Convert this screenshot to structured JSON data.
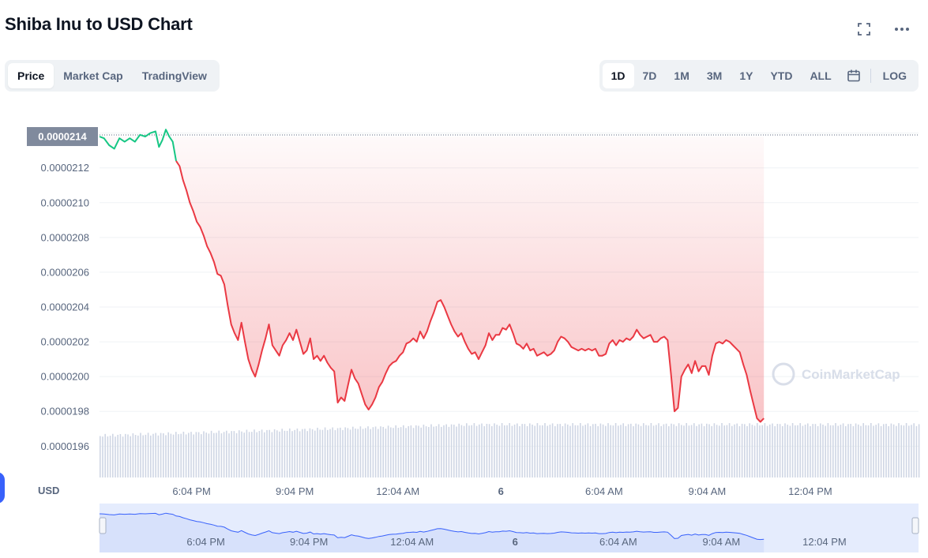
{
  "header": {
    "title": "Shiba Inu to USD Chart"
  },
  "tabs": [
    {
      "label": "Price",
      "active": true
    },
    {
      "label": "Market Cap",
      "active": false
    },
    {
      "label": "TradingView",
      "active": false
    }
  ],
  "ranges": [
    {
      "label": "1D",
      "active": true
    },
    {
      "label": "7D",
      "active": false
    },
    {
      "label": "1M",
      "active": false
    },
    {
      "label": "3M",
      "active": false
    },
    {
      "label": "1Y",
      "active": false
    },
    {
      "label": "YTD",
      "active": false
    },
    {
      "label": "ALL",
      "active": false
    }
  ],
  "log_label": "LOG",
  "icons": {
    "fullscreen": "expand-icon",
    "more": "more-dots-icon",
    "calendar": "calendar-icon"
  },
  "colors": {
    "line_down": "#ea3943",
    "line_up": "#16c784",
    "fill_top": "#fde8ea",
    "volume": "#cfd6e4",
    "navigator_bg": "#e5ecfd",
    "navigator_line": "#3861fb",
    "accent": "#3861fb"
  },
  "chart_data": {
    "type": "area",
    "currency_label": "USD",
    "watermark": "CoinMarketCap",
    "current_price_label": "0.0000214",
    "y_ticks": [
      "0.0000196",
      "0.0000198",
      "0.0000200",
      "0.0000202",
      "0.0000204",
      "0.0000206",
      "0.0000208",
      "0.0000210",
      "0.0000212",
      "0.0000214"
    ],
    "x_ticks": [
      "6:04 PM",
      "9:04 PM",
      "12:04 AM",
      "6",
      "6:04 AM",
      "9:04 AM",
      "12:04 PM"
    ],
    "x_tick_hours": [
      3,
      6,
      9,
      12,
      15,
      18,
      21
    ],
    "x_range_hours": [
      0.32,
      24.15
    ],
    "y_range": [
      1.942e-05,
      2.143e-05
    ],
    "ylim": [
      1.961e-05,
      2.14e-05
    ],
    "price_series": [
      [
        0.32,
        2.138e-05
      ],
      [
        0.45,
        2.137e-05
      ],
      [
        0.6,
        2.133e-05
      ],
      [
        0.75,
        2.131e-05
      ],
      [
        0.9,
        2.137e-05
      ],
      [
        1.05,
        2.135e-05
      ],
      [
        1.2,
        2.137e-05
      ],
      [
        1.35,
        2.135e-05
      ],
      [
        1.5,
        2.139e-05
      ],
      [
        1.65,
        2.138e-05
      ],
      [
        1.8,
        2.14e-05
      ],
      [
        1.95,
        2.141e-05
      ],
      [
        2.05,
        2.132e-05
      ],
      [
        2.15,
        2.136e-05
      ],
      [
        2.25,
        2.142e-05
      ],
      [
        2.35,
        2.138e-05
      ],
      [
        2.45,
        2.135e-05
      ],
      [
        2.55,
        2.124e-05
      ],
      [
        2.65,
        2.121e-05
      ],
      [
        2.75,
        2.113e-05
      ],
      [
        2.85,
        2.107e-05
      ],
      [
        2.95,
        2.1e-05
      ],
      [
        3.05,
        2.095e-05
      ],
      [
        3.15,
        2.089e-05
      ],
      [
        3.25,
        2.086e-05
      ],
      [
        3.35,
        2.081e-05
      ],
      [
        3.45,
        2.075e-05
      ],
      [
        3.55,
        2.071e-05
      ],
      [
        3.65,
        2.066e-05
      ],
      [
        3.75,
        2.059e-05
      ],
      [
        3.85,
        2.058e-05
      ],
      [
        3.95,
        2.053e-05
      ],
      [
        4.05,
        2.041e-05
      ],
      [
        4.15,
        2.03e-05
      ],
      [
        4.25,
        2.025e-05
      ],
      [
        4.35,
        2.021e-05
      ],
      [
        4.45,
        2.031e-05
      ],
      [
        4.55,
        2.02e-05
      ],
      [
        4.65,
        2.01e-05
      ],
      [
        4.75,
        2.004e-05
      ],
      [
        4.85,
        2e-05
      ],
      [
        4.95,
        2.007e-05
      ],
      [
        5.05,
        2.015e-05
      ],
      [
        5.15,
        2.022e-05
      ],
      [
        5.25,
        2.03e-05
      ],
      [
        5.35,
        2.018e-05
      ],
      [
        5.45,
        2.015e-05
      ],
      [
        5.55,
        2.012e-05
      ],
      [
        5.65,
        2.018e-05
      ],
      [
        5.75,
        2.021e-05
      ],
      [
        5.85,
        2.025e-05
      ],
      [
        5.95,
        2.021e-05
      ],
      [
        6.05,
        2.027e-05
      ],
      [
        6.15,
        2.02e-05
      ],
      [
        6.25,
        2.013e-05
      ],
      [
        6.35,
        2.015e-05
      ],
      [
        6.45,
        2.022e-05
      ],
      [
        6.55,
        2.01e-05
      ],
      [
        6.65,
        2.012e-05
      ],
      [
        6.75,
        2.009e-05
      ],
      [
        6.85,
        2.012e-05
      ],
      [
        6.95,
        2.008e-05
      ],
      [
        7.05,
        2.005e-05
      ],
      [
        7.15,
        2.003e-05
      ],
      [
        7.25,
        1.985e-05
      ],
      [
        7.35,
        1.988e-05
      ],
      [
        7.45,
        1.986e-05
      ],
      [
        7.55,
        1.995e-05
      ],
      [
        7.65,
        2.004e-05
      ],
      [
        7.75,
        1.999e-05
      ],
      [
        7.85,
        1.996e-05
      ],
      [
        7.95,
        1.99e-05
      ],
      [
        8.05,
        1.984e-05
      ],
      [
        8.15,
        1.981e-05
      ],
      [
        8.25,
        1.984e-05
      ],
      [
        8.35,
        1.988e-05
      ],
      [
        8.45,
        1.994e-05
      ],
      [
        8.55,
        1.997e-05
      ],
      [
        8.65,
        2.002e-05
      ],
      [
        8.75,
        2.006e-05
      ],
      [
        8.85,
        2.008e-05
      ],
      [
        8.95,
        2.009e-05
      ],
      [
        9.05,
        2.012e-05
      ],
      [
        9.15,
        2.014e-05
      ],
      [
        9.25,
        2.019e-05
      ],
      [
        9.35,
        2.02e-05
      ],
      [
        9.45,
        2.022e-05
      ],
      [
        9.55,
        2.02e-05
      ],
      [
        9.65,
        2.026e-05
      ],
      [
        9.75,
        2.022e-05
      ],
      [
        9.85,
        2.026e-05
      ],
      [
        9.95,
        2.032e-05
      ],
      [
        10.05,
        2.037e-05
      ],
      [
        10.15,
        2.043e-05
      ],
      [
        10.25,
        2.044e-05
      ],
      [
        10.35,
        2.04e-05
      ],
      [
        10.45,
        2.035e-05
      ],
      [
        10.55,
        2.03e-05
      ],
      [
        10.65,
        2.026e-05
      ],
      [
        10.75,
        2.023e-05
      ],
      [
        10.85,
        2.025e-05
      ],
      [
        10.95,
        2.02e-05
      ],
      [
        11.05,
        2.016e-05
      ],
      [
        11.15,
        2.013e-05
      ],
      [
        11.25,
        2.014e-05
      ],
      [
        11.35,
        2.01e-05
      ],
      [
        11.45,
        2.014e-05
      ],
      [
        11.55,
        2.018e-05
      ],
      [
        11.65,
        2.025e-05
      ],
      [
        11.75,
        2.021e-05
      ],
      [
        11.85,
        2.024e-05
      ],
      [
        11.95,
        2.024e-05
      ],
      [
        12.05,
        2.028e-05
      ],
      [
        12.15,
        2.027e-05
      ],
      [
        12.25,
        2.03e-05
      ],
      [
        12.35,
        2.025e-05
      ],
      [
        12.45,
        2.019e-05
      ],
      [
        12.55,
        2.018e-05
      ],
      [
        12.65,
        2.016e-05
      ],
      [
        12.75,
        2.019e-05
      ],
      [
        12.85,
        2.015e-05
      ],
      [
        12.95,
        2.016e-05
      ],
      [
        13.05,
        2.012e-05
      ],
      [
        13.15,
        2.013e-05
      ],
      [
        13.25,
        2.014e-05
      ],
      [
        13.35,
        2.012e-05
      ],
      [
        13.45,
        2.013e-05
      ],
      [
        13.55,
        2.015e-05
      ],
      [
        13.65,
        2.02e-05
      ],
      [
        13.75,
        2.023e-05
      ],
      [
        13.85,
        2.022e-05
      ],
      [
        13.95,
        2.02e-05
      ],
      [
        14.05,
        2.017e-05
      ],
      [
        14.15,
        2.016e-05
      ],
      [
        14.25,
        2.015e-05
      ],
      [
        14.35,
        2.016e-05
      ],
      [
        14.45,
        2.015e-05
      ],
      [
        14.55,
        2.016e-05
      ],
      [
        14.65,
        2.015e-05
      ],
      [
        14.75,
        2.016e-05
      ],
      [
        14.85,
        2.012e-05
      ],
      [
        14.95,
        2.012e-05
      ],
      [
        15.05,
        2.013e-05
      ],
      [
        15.15,
        2.019e-05
      ],
      [
        15.25,
        2.021e-05
      ],
      [
        15.35,
        2.018e-05
      ],
      [
        15.45,
        2.021e-05
      ],
      [
        15.55,
        2.02e-05
      ],
      [
        15.65,
        2.022e-05
      ],
      [
        15.75,
        2.021e-05
      ],
      [
        15.85,
        2.023e-05
      ],
      [
        15.95,
        2.027e-05
      ],
      [
        16.05,
        2.024e-05
      ],
      [
        16.15,
        2.022e-05
      ],
      [
        16.25,
        2.023e-05
      ],
      [
        16.35,
        2.024e-05
      ],
      [
        16.45,
        2.02e-05
      ],
      [
        16.55,
        2.02e-05
      ],
      [
        16.65,
        2.022e-05
      ],
      [
        16.75,
        2.023e-05
      ],
      [
        16.85,
        2.021e-05
      ],
      [
        16.95,
        2.001e-05
      ],
      [
        17.05,
        1.98e-05
      ],
      [
        17.15,
        1.982e-05
      ],
      [
        17.25,
        2e-05
      ],
      [
        17.35,
        2.004e-05
      ],
      [
        17.45,
        2.007e-05
      ],
      [
        17.55,
        2.002e-05
      ],
      [
        17.65,
        2.009e-05
      ],
      [
        17.75,
        2.003e-05
      ],
      [
        17.85,
        2.006e-05
      ],
      [
        17.95,
        2.006e-05
      ],
      [
        18.05,
        2.001e-05
      ],
      [
        18.15,
        2.012e-05
      ],
      [
        18.25,
        2.019e-05
      ],
      [
        18.35,
        2.02e-05
      ],
      [
        18.45,
        2.019e-05
      ],
      [
        18.55,
        2.021e-05
      ],
      [
        18.65,
        2.02e-05
      ],
      [
        18.75,
        2.018e-05
      ],
      [
        18.85,
        2.016e-05
      ],
      [
        18.95,
        2.014e-05
      ],
      [
        19.05,
        2.007e-05
      ],
      [
        19.15,
        2.001e-05
      ],
      [
        19.25,
        1.992e-05
      ],
      [
        19.35,
        1.984e-05
      ],
      [
        19.45,
        1.976e-05
      ],
      [
        19.55,
        1.974e-05
      ],
      [
        19.65,
        1.976e-05
      ]
    ],
    "navigator_labels": [
      "6:04 PM",
      "9:04 PM",
      "12:04 AM",
      "6",
      "6:04 AM",
      "9:04 AM",
      "12:04 PM"
    ]
  }
}
